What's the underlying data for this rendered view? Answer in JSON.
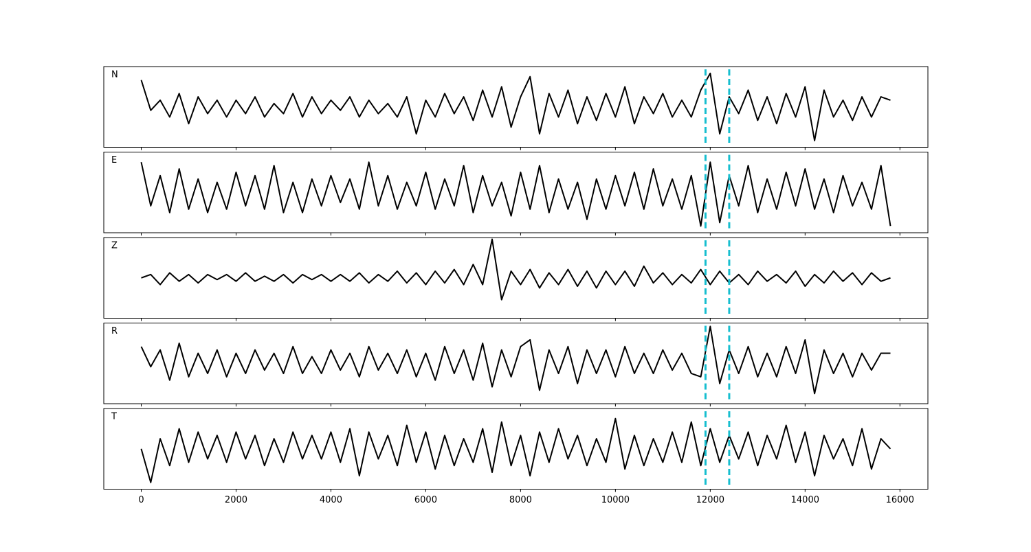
{
  "chart_data": {
    "type": "line",
    "x": [
      0,
      200,
      400,
      600,
      800,
      1000,
      1200,
      1400,
      1600,
      1800,
      2000,
      2200,
      2400,
      2600,
      2800,
      3000,
      3200,
      3400,
      3600,
      3800,
      4000,
      4200,
      4400,
      4600,
      4800,
      5000,
      5200,
      5400,
      5600,
      5800,
      6000,
      6200,
      6400,
      6600,
      6800,
      7000,
      7200,
      7400,
      7600,
      7800,
      8000,
      8200,
      8400,
      8600,
      8800,
      9000,
      9200,
      9400,
      9600,
      9800,
      10000,
      10200,
      10400,
      10600,
      10800,
      11000,
      11200,
      11400,
      11600,
      11800,
      12000,
      12200,
      12400,
      12600,
      12800,
      13000,
      13200,
      13400,
      13600,
      13800,
      14000,
      14200,
      14400,
      14600,
      14800,
      15000,
      15200,
      15400,
      15600,
      15800
    ],
    "series": [
      {
        "name": "N",
        "color": "#000000",
        "values": [
          0.8,
          -0.1,
          0.2,
          -0.3,
          0.4,
          -0.5,
          0.3,
          -0.2,
          0.2,
          -0.3,
          0.2,
          -0.2,
          0.3,
          -0.3,
          0.1,
          -0.2,
          0.4,
          -0.3,
          0.3,
          -0.2,
          0.2,
          -0.1,
          0.3,
          -0.3,
          0.2,
          -0.2,
          0.1,
          -0.3,
          0.3,
          -0.8,
          0.2,
          -0.3,
          0.4,
          -0.2,
          0.3,
          -0.4,
          0.5,
          -0.3,
          0.6,
          -0.6,
          0.3,
          0.9,
          -0.8,
          0.4,
          -0.3,
          0.5,
          -0.5,
          0.3,
          -0.4,
          0.4,
          -0.3,
          0.6,
          -0.5,
          0.3,
          -0.2,
          0.4,
          -0.3,
          0.2,
          -0.3,
          0.5,
          1.0,
          -0.8,
          0.3,
          -0.2,
          0.5,
          -0.4,
          0.3,
          -0.5,
          0.4,
          -0.3,
          0.6,
          -1.0,
          0.5,
          -0.3,
          0.2,
          -0.4,
          0.3,
          -0.3,
          0.3,
          0.2
        ]
      },
      {
        "name": "E",
        "color": "#000000",
        "values": [
          0.9,
          -0.4,
          0.5,
          -0.6,
          0.7,
          -0.5,
          0.4,
          -0.6,
          0.3,
          -0.5,
          0.6,
          -0.4,
          0.5,
          -0.5,
          0.8,
          -0.6,
          0.3,
          -0.6,
          0.4,
          -0.4,
          0.5,
          -0.3,
          0.4,
          -0.5,
          0.9,
          -0.4,
          0.5,
          -0.5,
          0.3,
          -0.4,
          0.6,
          -0.5,
          0.4,
          -0.4,
          0.8,
          -0.6,
          0.5,
          -0.4,
          0.3,
          -0.7,
          0.6,
          -0.5,
          0.8,
          -0.6,
          0.4,
          -0.5,
          0.3,
          -0.8,
          0.4,
          -0.5,
          0.5,
          -0.4,
          0.6,
          -0.5,
          0.7,
          -0.4,
          0.4,
          -0.5,
          0.5,
          -1.0,
          0.9,
          -0.9,
          0.5,
          -0.4,
          0.8,
          -0.6,
          0.4,
          -0.5,
          0.6,
          -0.4,
          0.7,
          -0.5,
          0.4,
          -0.6,
          0.5,
          -0.4,
          0.3,
          -0.5,
          0.8,
          -1.0
        ]
      },
      {
        "name": "Z",
        "color": "#000000",
        "values": [
          0.0,
          0.1,
          -0.2,
          0.15,
          -0.1,
          0.1,
          -0.15,
          0.1,
          -0.05,
          0.1,
          -0.1,
          0.15,
          -0.1,
          0.05,
          -0.1,
          0.1,
          -0.15,
          0.1,
          -0.05,
          0.1,
          -0.1,
          0.1,
          -0.1,
          0.15,
          -0.15,
          0.1,
          -0.1,
          0.2,
          -0.15,
          0.15,
          -0.2,
          0.2,
          -0.15,
          0.25,
          -0.2,
          0.4,
          -0.2,
          1.15,
          -0.65,
          0.2,
          -0.2,
          0.25,
          -0.3,
          0.15,
          -0.2,
          0.25,
          -0.25,
          0.2,
          -0.3,
          0.2,
          -0.2,
          0.2,
          -0.25,
          0.35,
          -0.15,
          0.15,
          -0.2,
          0.1,
          -0.15,
          0.25,
          -0.2,
          0.2,
          -0.15,
          0.1,
          -0.2,
          0.2,
          -0.1,
          0.1,
          -0.15,
          0.2,
          -0.25,
          0.1,
          -0.15,
          0.2,
          -0.1,
          0.15,
          -0.2,
          0.15,
          -0.1,
          0.0
        ]
      },
      {
        "name": "R",
        "color": "#000000",
        "values": [
          0.5,
          -0.1,
          0.4,
          -0.5,
          0.6,
          -0.4,
          0.3,
          -0.3,
          0.4,
          -0.4,
          0.3,
          -0.3,
          0.4,
          -0.2,
          0.3,
          -0.3,
          0.5,
          -0.3,
          0.2,
          -0.3,
          0.4,
          -0.2,
          0.3,
          -0.4,
          0.5,
          -0.2,
          0.3,
          -0.3,
          0.4,
          -0.4,
          0.3,
          -0.5,
          0.5,
          -0.3,
          0.4,
          -0.5,
          0.6,
          -0.7,
          0.4,
          -0.4,
          0.5,
          0.7,
          -0.8,
          0.4,
          -0.3,
          0.5,
          -0.6,
          0.4,
          -0.3,
          0.4,
          -0.4,
          0.5,
          -0.3,
          0.3,
          -0.3,
          0.4,
          -0.2,
          0.3,
          -0.3,
          -0.4,
          1.1,
          -0.6,
          0.4,
          -0.3,
          0.5,
          -0.4,
          0.3,
          -0.4,
          0.5,
          -0.3,
          0.7,
          -0.9,
          0.4,
          -0.3,
          0.3,
          -0.4,
          0.3,
          -0.2,
          0.3,
          0.3
        ]
      },
      {
        "name": "T",
        "color": "#000000",
        "values": [
          0.0,
          -1.0,
          0.3,
          -0.5,
          0.6,
          -0.4,
          0.5,
          -0.3,
          0.4,
          -0.4,
          0.5,
          -0.3,
          0.4,
          -0.5,
          0.3,
          -0.4,
          0.5,
          -0.3,
          0.4,
          -0.3,
          0.5,
          -0.4,
          0.6,
          -0.8,
          0.5,
          -0.3,
          0.4,
          -0.5,
          0.7,
          -0.4,
          0.5,
          -0.6,
          0.4,
          -0.5,
          0.3,
          -0.4,
          0.6,
          -0.7,
          0.8,
          -0.5,
          0.4,
          -0.8,
          0.5,
          -0.4,
          0.6,
          -0.3,
          0.4,
          -0.5,
          0.3,
          -0.4,
          0.9,
          -0.6,
          0.4,
          -0.5,
          0.3,
          -0.4,
          0.5,
          -0.4,
          0.8,
          -0.5,
          0.6,
          -0.4,
          0.4,
          -0.3,
          0.5,
          -0.5,
          0.4,
          -0.3,
          0.7,
          -0.4,
          0.5,
          -0.8,
          0.4,
          -0.3,
          0.3,
          -0.5,
          0.6,
          -0.6,
          0.3,
          0.0
        ]
      }
    ],
    "xlim": [
      -790,
      16590
    ],
    "ylim": [
      -1.2,
      1.2
    ],
    "xticks": [
      0,
      2000,
      4000,
      6000,
      8000,
      10000,
      12000,
      14000,
      16000
    ],
    "vlines": [
      11900,
      12400
    ],
    "vline_color": "#17becf",
    "vline_style": "dashed"
  }
}
